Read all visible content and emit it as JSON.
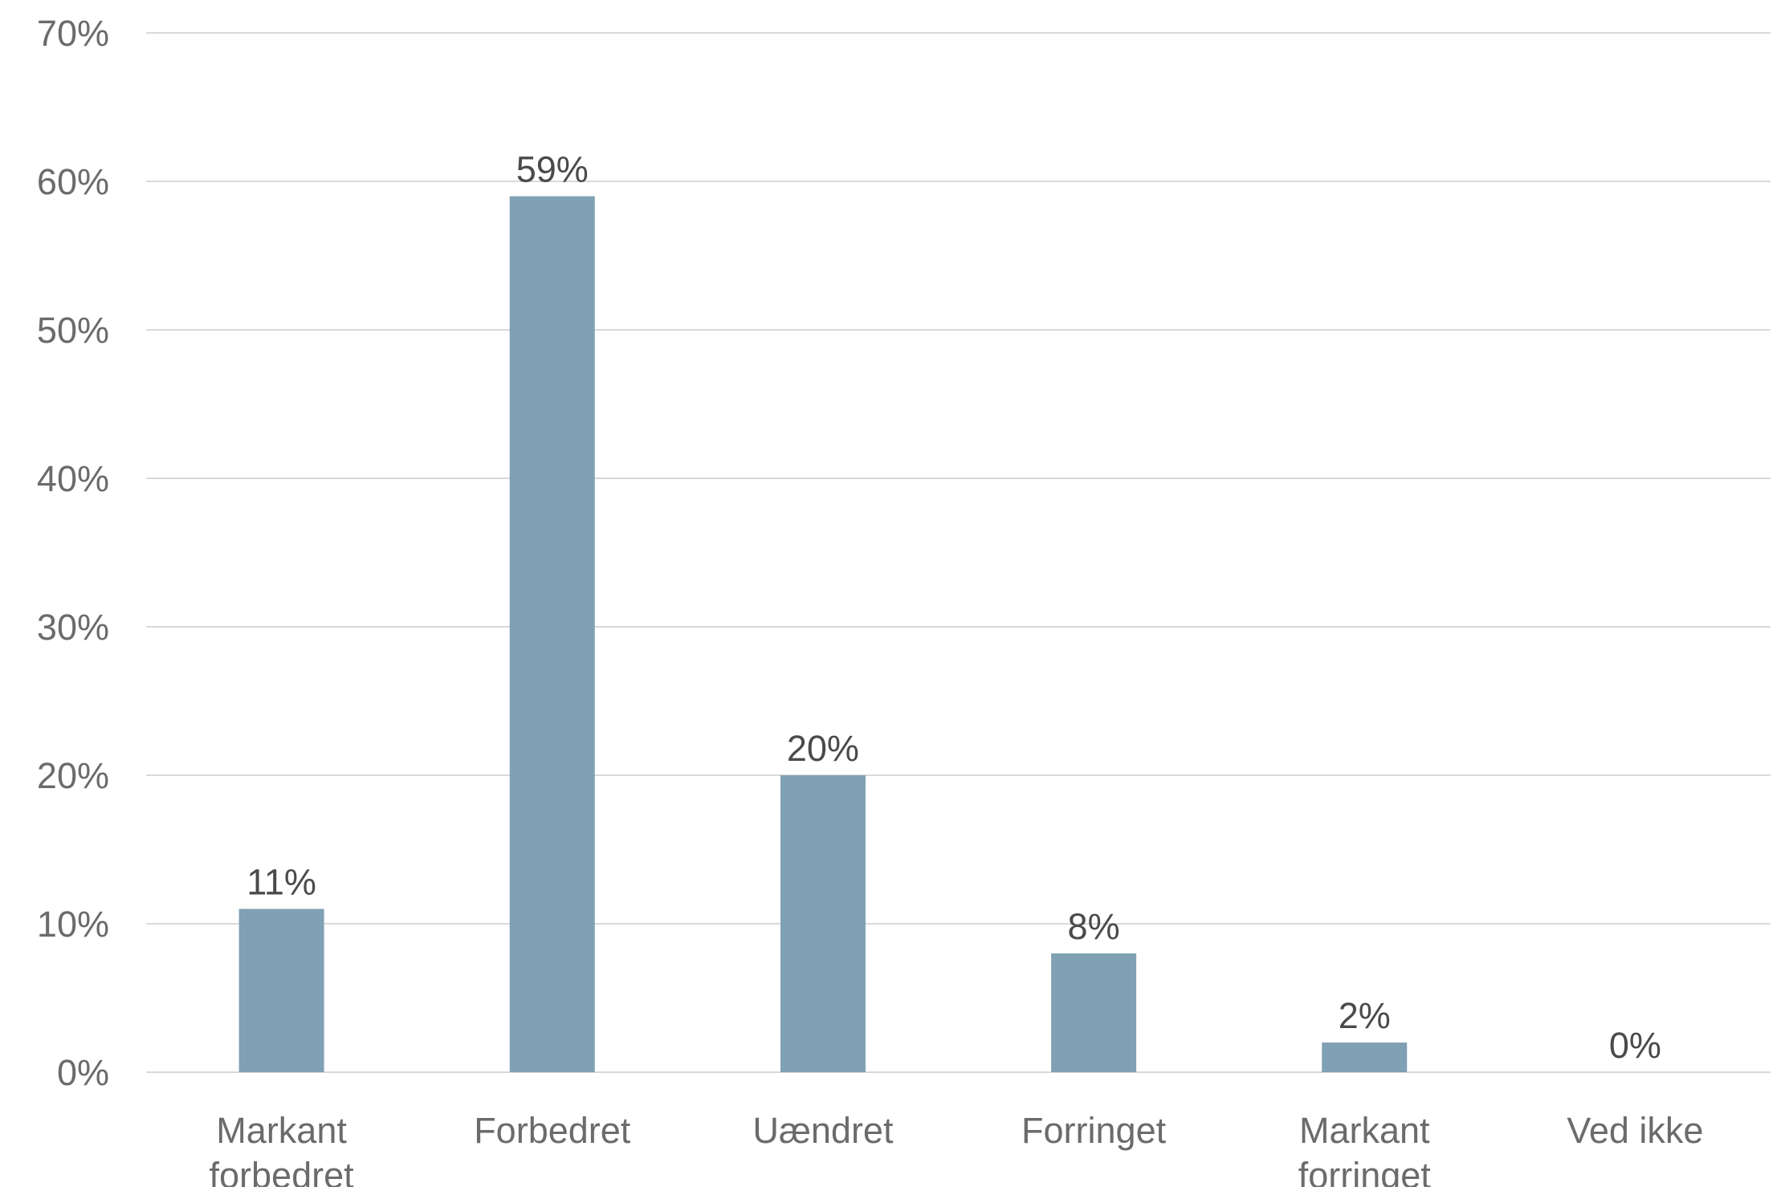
{
  "colors": {
    "bar": "#80a0b4",
    "gridline": "#d9d9d9",
    "tick_text": "#6b6b6b",
    "data_label_text": "#4a4a4a",
    "background": "#ffffff"
  },
  "chart_data": {
    "type": "bar",
    "title": "",
    "xlabel": "",
    "ylabel": "",
    "categories": [
      [
        "Markant",
        "forbedret"
      ],
      [
        "Forbedret"
      ],
      [
        "Uændret"
      ],
      [
        "Forringet"
      ],
      [
        "Markant",
        "forringet"
      ],
      [
        "Ved ikke"
      ]
    ],
    "values": [
      11,
      59,
      20,
      8,
      2,
      0
    ],
    "value_labels": [
      "11%",
      "59%",
      "20%",
      "8%",
      "2%",
      "0%"
    ],
    "ylim": [
      0,
      70
    ],
    "yticks": [
      0,
      10,
      20,
      30,
      40,
      50,
      60,
      70
    ],
    "ytick_labels": [
      "0%",
      "10%",
      "20%",
      "30%",
      "40%",
      "50%",
      "60%",
      "70%"
    ],
    "grid": true,
    "legend": "none"
  }
}
